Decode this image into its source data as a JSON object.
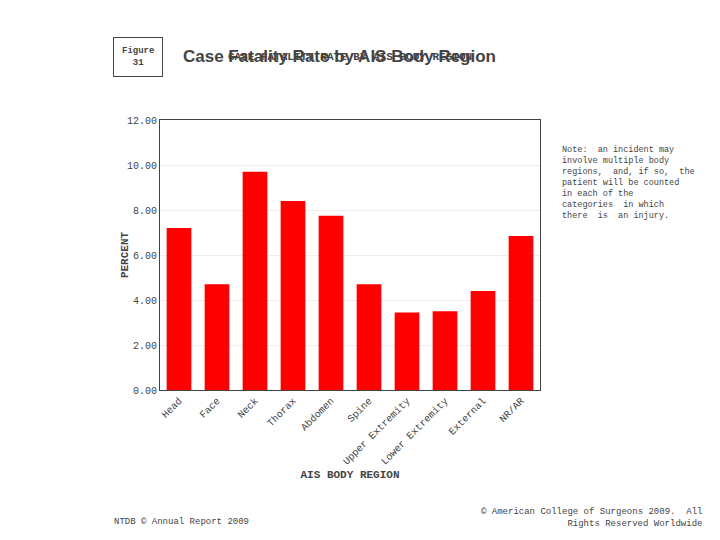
{
  "chart_data": {
    "type": "bar",
    "title": "CASE FATALITY RATE BY AIS BODY REGION",
    "xlabel": "AIS BODY REGION",
    "ylabel": "PERCENT",
    "categories": [
      "Head",
      "Face",
      "Neck",
      "Thorax",
      "Abdomen",
      "Spine",
      "Upper Extremity",
      "Lower Extremity",
      "External",
      "NR/AR"
    ],
    "values": [
      7.2,
      4.7,
      9.7,
      8.4,
      7.75,
      4.7,
      3.45,
      3.5,
      4.4,
      6.85
    ],
    "color": "#ff0000",
    "ylim": [
      0,
      12
    ],
    "yticks": [
      {
        "value": 0,
        "label": "0.00"
      },
      {
        "value": 2,
        "label": "2.00"
      },
      {
        "value": 4,
        "label": "4.00"
      },
      {
        "value": 6,
        "label": "6.00"
      },
      {
        "value": 8,
        "label": "8.00"
      },
      {
        "value": 10,
        "label": "10.00"
      },
      {
        "value": 12,
        "label": "12.00"
      }
    ],
    "grid": true,
    "annotations": [
      "Figure\n31",
      "Case Fatality Rate by AIS Body Region",
      "Note:  an incident may\ninvolve multiple body\nregions,  and, if so,  the\npatient will be counted\nin each of the\ncategories  in which\nthere  is  an injury.",
      "NTDB © Annual Report 2009",
      "© American College of Surgeons 2009.  All\nRights Reserved Worldwide"
    ]
  }
}
